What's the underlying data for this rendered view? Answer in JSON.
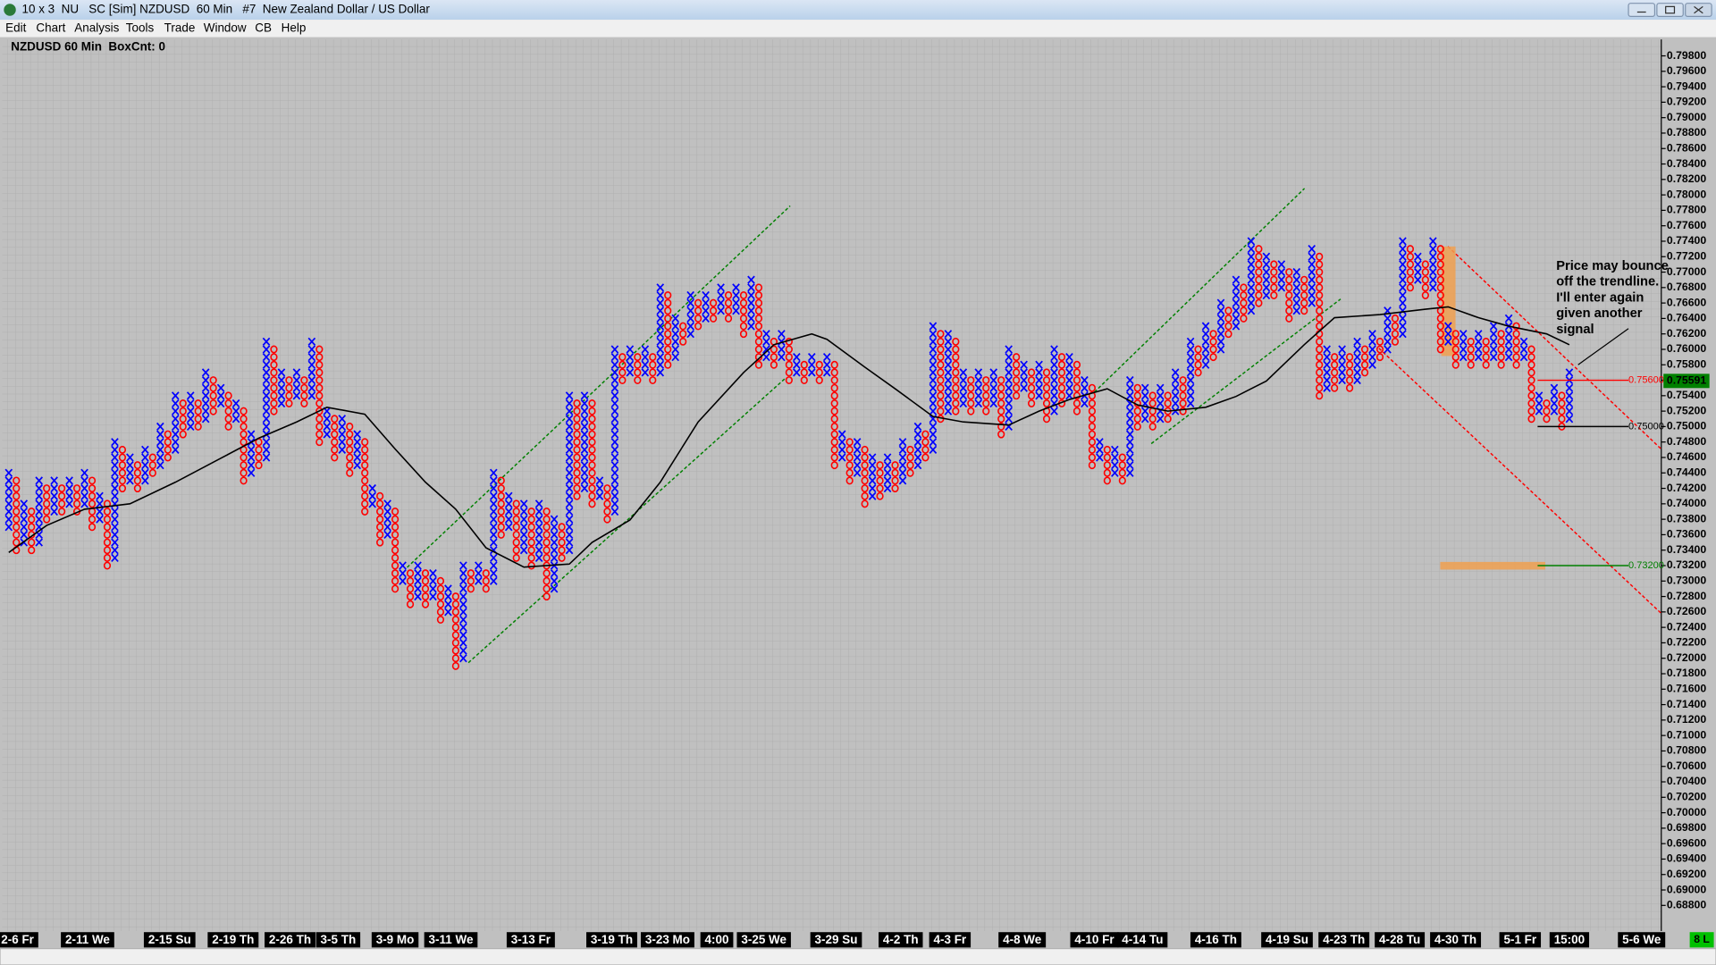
{
  "window": {
    "title": "10 x 3  NU   SC [Sim] NZDUSD  60 Min   #7  New Zealand Dollar / US Dollar",
    "menu": [
      "Edit",
      "Chart",
      "Analysis",
      "Tools",
      "Trade",
      "Window",
      "CB",
      "Help"
    ],
    "status": "8 L"
  },
  "chart_data": {
    "type": "point_and_figure",
    "title": "NZDUSD 60 Min  BoxCnt: 0",
    "box_size": 0.001,
    "first_column_type": "X",
    "x_color": "#0000ff",
    "o_color": "#ff0000",
    "columns": [
      [
        0.737,
        0.744
      ],
      [
        0.734,
        0.743
      ],
      [
        0.735,
        0.74
      ],
      [
        0.734,
        0.739
      ],
      [
        0.735,
        0.743
      ],
      [
        0.738,
        0.742
      ],
      [
        0.739,
        0.743
      ],
      [
        0.739,
        0.742
      ],
      [
        0.74,
        0.743
      ],
      [
        0.739,
        0.742
      ],
      [
        0.74,
        0.744
      ],
      [
        0.737,
        0.743
      ],
      [
        0.738,
        0.741
      ],
      [
        0.732,
        0.74
      ],
      [
        0.733,
        0.748
      ],
      [
        0.742,
        0.747
      ],
      [
        0.743,
        0.746
      ],
      [
        0.742,
        0.745
      ],
      [
        0.743,
        0.747
      ],
      [
        0.744,
        0.746
      ],
      [
        0.745,
        0.75
      ],
      [
        0.746,
        0.749
      ],
      [
        0.747,
        0.754
      ],
      [
        0.749,
        0.753
      ],
      [
        0.75,
        0.754
      ],
      [
        0.75,
        0.753
      ],
      [
        0.751,
        0.757
      ],
      [
        0.752,
        0.756
      ],
      [
        0.753,
        0.755
      ],
      [
        0.75,
        0.754
      ],
      [
        0.751,
        0.753
      ],
      [
        0.743,
        0.752
      ],
      [
        0.744,
        0.749
      ],
      [
        0.745,
        0.748
      ],
      [
        0.746,
        0.761
      ],
      [
        0.752,
        0.76
      ],
      [
        0.753,
        0.757
      ],
      [
        0.753,
        0.756
      ],
      [
        0.754,
        0.757
      ],
      [
        0.753,
        0.756
      ],
      [
        0.754,
        0.761
      ],
      [
        0.748,
        0.76
      ],
      [
        0.749,
        0.752
      ],
      [
        0.746,
        0.751
      ],
      [
        0.747,
        0.751
      ],
      [
        0.744,
        0.75
      ],
      [
        0.745,
        0.749
      ],
      [
        0.739,
        0.748
      ],
      [
        0.74,
        0.742
      ],
      [
        0.735,
        0.741
      ],
      [
        0.736,
        0.74
      ],
      [
        0.729,
        0.739
      ],
      [
        0.73,
        0.732
      ],
      [
        0.727,
        0.731
      ],
      [
        0.728,
        0.732
      ],
      [
        0.727,
        0.731
      ],
      [
        0.728,
        0.731
      ],
      [
        0.725,
        0.73
      ],
      [
        0.726,
        0.729
      ],
      [
        0.719,
        0.728
      ],
      [
        0.72,
        0.732
      ],
      [
        0.729,
        0.731
      ],
      [
        0.73,
        0.732
      ],
      [
        0.729,
        0.731
      ],
      [
        0.73,
        0.744
      ],
      [
        0.736,
        0.743
      ],
      [
        0.737,
        0.741
      ],
      [
        0.733,
        0.74
      ],
      [
        0.734,
        0.74
      ],
      [
        0.732,
        0.739
      ],
      [
        0.733,
        0.74
      ],
      [
        0.728,
        0.739
      ],
      [
        0.729,
        0.738
      ],
      [
        0.733,
        0.737
      ],
      [
        0.734,
        0.754
      ],
      [
        0.741,
        0.753
      ],
      [
        0.742,
        0.754
      ],
      [
        0.74,
        0.753
      ],
      [
        0.741,
        0.743
      ],
      [
        0.738,
        0.742
      ],
      [
        0.739,
        0.76
      ],
      [
        0.756,
        0.759
      ],
      [
        0.757,
        0.76
      ],
      [
        0.756,
        0.759
      ],
      [
        0.757,
        0.76
      ],
      [
        0.756,
        0.759
      ],
      [
        0.757,
        0.768
      ],
      [
        0.758,
        0.767
      ],
      [
        0.759,
        0.764
      ],
      [
        0.761,
        0.763
      ],
      [
        0.762,
        0.767
      ],
      [
        0.763,
        0.766
      ],
      [
        0.764,
        0.767
      ],
      [
        0.764,
        0.766
      ],
      [
        0.765,
        0.768
      ],
      [
        0.764,
        0.767
      ],
      [
        0.765,
        0.768
      ],
      [
        0.762,
        0.767
      ],
      [
        0.763,
        0.769
      ],
      [
        0.758,
        0.768
      ],
      [
        0.759,
        0.762
      ],
      [
        0.758,
        0.761
      ],
      [
        0.759,
        0.762
      ],
      [
        0.756,
        0.761
      ],
      [
        0.757,
        0.759
      ],
      [
        0.756,
        0.758
      ],
      [
        0.757,
        0.759
      ],
      [
        0.756,
        0.758
      ],
      [
        0.757,
        0.759
      ],
      [
        0.745,
        0.758
      ],
      [
        0.746,
        0.749
      ],
      [
        0.743,
        0.748
      ],
      [
        0.744,
        0.748
      ],
      [
        0.74,
        0.747
      ],
      [
        0.741,
        0.746
      ],
      [
        0.741,
        0.745
      ],
      [
        0.742,
        0.746
      ],
      [
        0.742,
        0.745
      ],
      [
        0.743,
        0.748
      ],
      [
        0.744,
        0.747
      ],
      [
        0.745,
        0.75
      ],
      [
        0.746,
        0.749
      ],
      [
        0.747,
        0.763
      ],
      [
        0.751,
        0.762
      ],
      [
        0.752,
        0.762
      ],
      [
        0.752,
        0.761
      ],
      [
        0.753,
        0.757
      ],
      [
        0.752,
        0.756
      ],
      [
        0.753,
        0.757
      ],
      [
        0.752,
        0.756
      ],
      [
        0.753,
        0.757
      ],
      [
        0.749,
        0.756
      ],
      [
        0.75,
        0.76
      ],
      [
        0.754,
        0.759
      ],
      [
        0.755,
        0.758
      ],
      [
        0.753,
        0.757
      ],
      [
        0.754,
        0.758
      ],
      [
        0.751,
        0.757
      ],
      [
        0.752,
        0.76
      ],
      [
        0.753,
        0.759
      ],
      [
        0.754,
        0.759
      ],
      [
        0.752,
        0.758
      ],
      [
        0.753,
        0.756
      ],
      [
        0.745,
        0.755
      ],
      [
        0.746,
        0.748
      ],
      [
        0.743,
        0.747
      ],
      [
        0.744,
        0.747
      ],
      [
        0.743,
        0.746
      ],
      [
        0.744,
        0.756
      ],
      [
        0.75,
        0.755
      ],
      [
        0.751,
        0.755
      ],
      [
        0.75,
        0.754
      ],
      [
        0.751,
        0.755
      ],
      [
        0.751,
        0.754
      ],
      [
        0.752,
        0.757
      ],
      [
        0.752,
        0.756
      ],
      [
        0.753,
        0.761
      ],
      [
        0.757,
        0.76
      ],
      [
        0.758,
        0.763
      ],
      [
        0.759,
        0.762
      ],
      [
        0.76,
        0.766
      ],
      [
        0.762,
        0.765
      ],
      [
        0.763,
        0.769
      ],
      [
        0.764,
        0.768
      ],
      [
        0.765,
        0.774
      ],
      [
        0.766,
        0.773
      ],
      [
        0.767,
        0.772
      ],
      [
        0.767,
        0.771
      ],
      [
        0.768,
        0.771
      ],
      [
        0.764,
        0.77
      ],
      [
        0.765,
        0.77
      ],
      [
        0.765,
        0.769
      ],
      [
        0.766,
        0.773
      ],
      [
        0.754,
        0.772
      ],
      [
        0.755,
        0.76
      ],
      [
        0.755,
        0.759
      ],
      [
        0.756,
        0.76
      ],
      [
        0.755,
        0.759
      ],
      [
        0.756,
        0.761
      ],
      [
        0.757,
        0.76
      ],
      [
        0.758,
        0.762
      ],
      [
        0.759,
        0.761
      ],
      [
        0.76,
        0.765
      ],
      [
        0.761,
        0.764
      ],
      [
        0.762,
        0.774
      ],
      [
        0.768,
        0.773
      ],
      [
        0.769,
        0.772
      ],
      [
        0.767,
        0.771
      ],
      [
        0.768,
        0.774
      ],
      [
        0.76,
        0.773
      ],
      [
        0.761,
        0.763
      ],
      [
        0.758,
        0.762
      ],
      [
        0.759,
        0.762
      ],
      [
        0.758,
        0.761
      ],
      [
        0.759,
        0.762
      ],
      [
        0.758,
        0.761
      ],
      [
        0.759,
        0.763
      ],
      [
        0.758,
        0.762
      ],
      [
        0.759,
        0.764
      ],
      [
        0.758,
        0.763
      ],
      [
        0.759,
        0.761
      ],
      [
        0.751,
        0.76
      ],
      [
        0.752,
        0.754
      ],
      [
        0.751,
        0.753
      ],
      [
        0.752,
        0.755
      ],
      [
        0.75,
        0.754
      ],
      [
        0.751,
        0.757
      ]
    ],
    "moving_average": {
      "color": "#000000",
      "x": [
        0,
        5,
        10,
        16,
        22,
        28,
        33,
        38,
        42,
        47,
        51,
        55,
        59,
        63,
        68,
        74,
        77,
        82,
        86,
        91,
        97,
        101,
        106,
        108,
        113,
        117,
        122,
        126,
        132,
        136,
        140,
        145,
        149,
        153,
        158,
        162,
        166,
        171,
        175,
        181,
        187,
        190,
        194,
        198,
        203,
        206
      ],
      "values": [
        0.7337,
        0.7372,
        0.7393,
        0.74,
        0.7428,
        0.7459,
        0.7485,
        0.7506,
        0.7525,
        0.7516,
        0.7471,
        0.7428,
        0.7393,
        0.7343,
        0.7318,
        0.7322,
        0.735,
        0.7379,
        0.7428,
        0.7506,
        0.757,
        0.7606,
        0.762,
        0.7613,
        0.7577,
        0.7549,
        0.7513,
        0.7506,
        0.7502,
        0.752,
        0.7535,
        0.7549,
        0.7528,
        0.752,
        0.7525,
        0.7539,
        0.7559,
        0.7606,
        0.7641,
        0.7645,
        0.7652,
        0.7655,
        0.7641,
        0.763,
        0.762,
        0.7606
      ]
    },
    "ylim": [
      0.688,
      0.798
    ],
    "yticks": [
      {
        "value": 0.798,
        "label": "0.79800"
      },
      {
        "value": 0.796,
        "label": "0.79600"
      },
      {
        "value": 0.794,
        "label": "0.79400"
      },
      {
        "value": 0.792,
        "label": "0.79200"
      },
      {
        "value": 0.79,
        "label": "0.79000"
      },
      {
        "value": 0.788,
        "label": "0.78800"
      },
      {
        "value": 0.786,
        "label": "0.78600"
      },
      {
        "value": 0.784,
        "label": "0.78400"
      },
      {
        "value": 0.782,
        "label": "0.78200"
      },
      {
        "value": 0.78,
        "label": "0.78000"
      },
      {
        "value": 0.778,
        "label": "0.77800"
      },
      {
        "value": 0.776,
        "label": "0.77600"
      },
      {
        "value": 0.774,
        "label": "0.77400"
      },
      {
        "value": 0.772,
        "label": "0.77200"
      },
      {
        "value": 0.77,
        "label": "0.77000"
      },
      {
        "value": 0.768,
        "label": "0.76800"
      },
      {
        "value": 0.766,
        "label": "0.76600"
      },
      {
        "value": 0.764,
        "label": "0.76400"
      },
      {
        "value": 0.762,
        "label": "0.76200"
      },
      {
        "value": 0.76,
        "label": "0.76000"
      },
      {
        "value": 0.758,
        "label": "0.75800"
      },
      {
        "value": 0.756,
        "label": "0.75600"
      },
      {
        "value": 0.754,
        "label": "0.75400"
      },
      {
        "value": 0.752,
        "label": "0.75200"
      },
      {
        "value": 0.75,
        "label": "0.75000"
      },
      {
        "value": 0.748,
        "label": "0.74800"
      },
      {
        "value": 0.746,
        "label": "0.74600"
      },
      {
        "value": 0.744,
        "label": "0.74400"
      },
      {
        "value": 0.742,
        "label": "0.74200"
      },
      {
        "value": 0.74,
        "label": "0.74000"
      },
      {
        "value": 0.738,
        "label": "0.73800"
      },
      {
        "value": 0.736,
        "label": "0.73600"
      },
      {
        "value": 0.734,
        "label": "0.73400"
      },
      {
        "value": 0.732,
        "label": "0.73200"
      },
      {
        "value": 0.73,
        "label": "0.73000"
      },
      {
        "value": 0.728,
        "label": "0.72800"
      },
      {
        "value": 0.726,
        "label": "0.72600"
      },
      {
        "value": 0.724,
        "label": "0.72400"
      },
      {
        "value": 0.722,
        "label": "0.72200"
      },
      {
        "value": 0.72,
        "label": "0.72000"
      },
      {
        "value": 0.718,
        "label": "0.71800"
      },
      {
        "value": 0.716,
        "label": "0.71600"
      },
      {
        "value": 0.714,
        "label": "0.71400"
      },
      {
        "value": 0.712,
        "label": "0.71200"
      },
      {
        "value": 0.71,
        "label": "0.71000"
      },
      {
        "value": 0.708,
        "label": "0.70800"
      },
      {
        "value": 0.706,
        "label": "0.70600"
      },
      {
        "value": 0.704,
        "label": "0.70400"
      },
      {
        "value": 0.702,
        "label": "0.70200"
      },
      {
        "value": 0.7,
        "label": "0.70000"
      },
      {
        "value": 0.698,
        "label": "0.69800"
      },
      {
        "value": 0.696,
        "label": "0.69600"
      },
      {
        "value": 0.694,
        "label": "0.69400"
      },
      {
        "value": 0.692,
        "label": "0.69200"
      },
      {
        "value": 0.69,
        "label": "0.69000"
      },
      {
        "value": 0.688,
        "label": "0.68800"
      }
    ],
    "date_labels": [
      "2-6 Fr",
      "2-11 We",
      "2-15 Su",
      "2-19 Th",
      "2-26 Th",
      "3-5 Th",
      "3-9 Mo",
      "3-11 We",
      "3-13 Fr",
      "3-19 Th",
      "3-23 Mo",
      "4:00",
      "3-25 We",
      "3-29 Su",
      "4-2 Th",
      "4-3 Fr",
      "4-8 We",
      "4-10 Fr",
      "4-14 Tu",
      "4-16 Th",
      "4-19 Su",
      "4-23 Th",
      "4-28 Tu",
      "4-30 Th",
      "5-1 Fr",
      "15:00",
      "5-6 We"
    ],
    "levels": [
      {
        "value": 0.756,
        "label": "0.75600",
        "color": "#ff0000"
      },
      {
        "value": 0.75,
        "label": "0.75000",
        "color": "#000000"
      },
      {
        "value": 0.732,
        "label": "0.73200",
        "color": "#008000"
      }
    ],
    "last_price": {
      "value": 0.75591,
      "label": "0.75591"
    },
    "annotation": [
      "Price may bounce",
      "off the trendline.",
      "I'll enter again",
      "given another",
      "signal"
    ]
  }
}
